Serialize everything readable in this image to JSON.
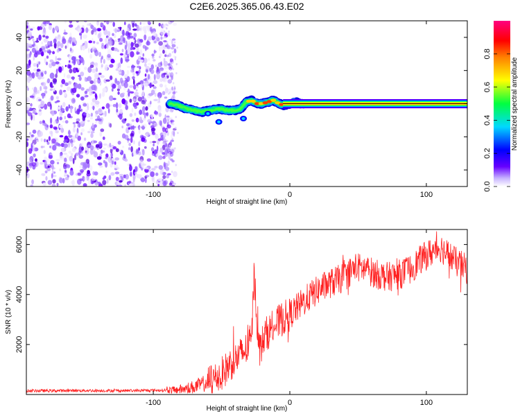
{
  "title": "C2E6.2025.365.06.43.E02",
  "chart_data": [
    {
      "type": "heatmap",
      "name": "spectrogram",
      "xlabel": "Height of straight line (km)",
      "ylabel": "Frequency (Hz)",
      "xlim": [
        -193,
        130
      ],
      "ylim": [
        -50,
        50
      ],
      "xticks": [
        -100,
        0,
        100
      ],
      "yticks": [
        -40,
        -20,
        0,
        20,
        40
      ],
      "noise_region_x": [
        -193,
        -88
      ],
      "signal_track": {
        "x": [
          -88,
          -82,
          -76,
          -70,
          -64,
          -58,
          -52,
          -46,
          -40,
          -36,
          -32,
          -28,
          -24,
          -20,
          -16,
          -12,
          -8,
          -4,
          0,
          4,
          8,
          12,
          40,
          80,
          130
        ],
        "frequency": [
          0,
          -1,
          -3,
          -4,
          -5,
          -4,
          -3,
          -4,
          -4,
          -3,
          1,
          2,
          0,
          0,
          1,
          2,
          0,
          -1,
          0,
          1,
          0,
          0,
          0,
          0,
          0
        ]
      },
      "colorbar": {
        "label": "Normalized spectral amplitude",
        "range": [
          0,
          1
        ],
        "ticks": [
          0.0,
          0.2,
          0.4,
          0.6,
          0.8
        ],
        "colors": [
          "#ffffff",
          "#c8b4ff",
          "#6600ff",
          "#0000ff",
          "#00d8ff",
          "#00ff40",
          "#ffff00",
          "#ff8000",
          "#ff0000",
          "#ff0080"
        ]
      }
    },
    {
      "type": "line",
      "name": "snr",
      "xlabel": "Height of straight line (km)",
      "ylabel": "SNR (10 * v/v)",
      "xlim": [
        -193,
        130
      ],
      "ylim": [
        0,
        6600
      ],
      "xticks": [
        -100,
        0,
        100
      ],
      "yticks": [
        2000,
        4000,
        6000
      ],
      "color": "#ff0000",
      "x": [
        -193,
        -170,
        -150,
        -130,
        -110,
        -95,
        -85,
        -78,
        -70,
        -62,
        -56,
        -50,
        -44,
        -38,
        -32,
        -28,
        -26,
        -24,
        -22,
        -18,
        -12,
        -6,
        0,
        8,
        16,
        24,
        32,
        40,
        48,
        56,
        64,
        72,
        80,
        88,
        96,
        104,
        110,
        116,
        122,
        130
      ],
      "y": [
        150,
        150,
        160,
        150,
        160,
        170,
        180,
        220,
        300,
        450,
        600,
        800,
        1200,
        1500,
        1800,
        2200,
        5000,
        2800,
        1800,
        2400,
        2700,
        3000,
        3200,
        3600,
        4000,
        4300,
        4500,
        4700,
        5100,
        5000,
        4800,
        4700,
        4800,
        5000,
        5400,
        5700,
        5900,
        5600,
        5300,
        5000
      ]
    }
  ]
}
